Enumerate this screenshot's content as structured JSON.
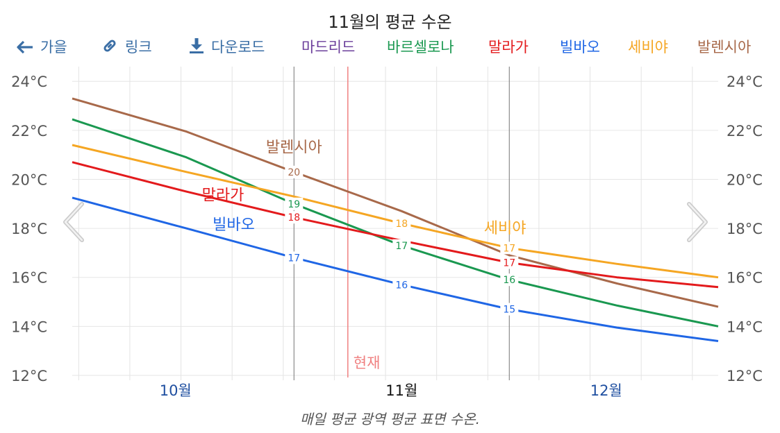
{
  "title": "11월의 평균 수온",
  "caption": "매일 평균 광역 평균 표면 수온.",
  "toolbar": {
    "back": {
      "label": "가을",
      "icon": "arrow-left-icon",
      "color": "#3a6ea5"
    },
    "link": {
      "label": "링크",
      "icon": "link-icon",
      "color": "#3a6ea5"
    },
    "download": {
      "label": "다운로드",
      "icon": "download-icon",
      "color": "#3a6ea5"
    },
    "cities": [
      {
        "label": "마드리드",
        "color": "#6a3d9a"
      },
      {
        "label": "바르셀로나",
        "color": "#1a9850"
      },
      {
        "label": "말라가",
        "color": "#e31a1c"
      },
      {
        "label": "빌바오",
        "color": "#1f66e5"
      },
      {
        "label": "세비야",
        "color": "#f5a623"
      },
      {
        "label": "발렌시아",
        "color": "#a8694a"
      }
    ]
  },
  "nav": {
    "prev_icon": "chevron-left-icon",
    "next_icon": "chevron-right-icon"
  },
  "now_marker": {
    "label": "현재",
    "x": 10.75,
    "color": "#f08080"
  },
  "chart_data": {
    "type": "line",
    "title": "11월의 평균 수온",
    "xlabel": "",
    "ylabel": "",
    "x_unit": "month",
    "xlim": [
      9.47,
      12.47
    ],
    "ylim": [
      11.8,
      24.6
    ],
    "yticks": [
      12,
      14,
      16,
      18,
      20,
      22,
      24
    ],
    "ytick_labels": [
      "12°C",
      "14°C",
      "16°C",
      "18°C",
      "20°C",
      "22°C",
      "24°C"
    ],
    "xtick_labels": [
      {
        "label": "10월",
        "x": 9.95,
        "bold": false
      },
      {
        "label": "11월",
        "x": 11.0,
        "bold": true
      },
      {
        "label": "12월",
        "x": 11.95,
        "bold": false
      }
    ],
    "month_dividers": [
      10.5,
      11.5
    ],
    "grid": true,
    "series": [
      {
        "name": "발렌시아",
        "color": "#a8694a",
        "values": [
          [
            9.47,
            23.3
          ],
          [
            10.0,
            21.95
          ],
          [
            10.5,
            20.3
          ],
          [
            11.0,
            18.7
          ],
          [
            11.5,
            16.9
          ],
          [
            12.0,
            15.75
          ],
          [
            12.47,
            14.8
          ]
        ],
        "point_labels": [
          [
            10.5,
            "20"
          ]
        ],
        "name_label": {
          "x": 10.5,
          "y": 21.1
        }
      },
      {
        "name": "바르셀로나",
        "color": "#1a9850",
        "values": [
          [
            9.47,
            22.45
          ],
          [
            10.0,
            20.9
          ],
          [
            10.5,
            19.0
          ],
          [
            11.0,
            17.3
          ],
          [
            11.5,
            15.9
          ],
          [
            12.0,
            14.85
          ],
          [
            12.47,
            14.0
          ]
        ],
        "point_labels": [
          [
            10.5,
            "19"
          ],
          [
            11.0,
            "17"
          ],
          [
            11.5,
            "16"
          ]
        ]
      },
      {
        "name": "세비야",
        "color": "#f5a623",
        "values": [
          [
            9.47,
            21.4
          ],
          [
            10.0,
            20.3
          ],
          [
            10.5,
            19.3
          ],
          [
            11.0,
            18.2
          ],
          [
            11.5,
            17.2
          ],
          [
            12.0,
            16.55
          ],
          [
            12.47,
            16.0
          ]
        ],
        "point_labels": [
          [
            11.0,
            "18"
          ],
          [
            11.5,
            "17"
          ]
        ],
        "name_label": {
          "x": 11.48,
          "y": 17.8
        }
      },
      {
        "name": "말라가",
        "color": "#e31a1c",
        "values": [
          [
            9.47,
            20.7
          ],
          [
            10.0,
            19.5
          ],
          [
            10.5,
            18.45
          ],
          [
            11.0,
            17.5
          ],
          [
            11.5,
            16.6
          ],
          [
            12.0,
            16.0
          ],
          [
            12.47,
            15.6
          ]
        ],
        "point_labels": [
          [
            10.5,
            "18"
          ],
          [
            11.5,
            "17"
          ]
        ],
        "name_label": {
          "x": 10.17,
          "y": 19.15
        }
      },
      {
        "name": "빌바오",
        "color": "#1f66e5",
        "values": [
          [
            9.47,
            19.25
          ],
          [
            10.0,
            18.0
          ],
          [
            10.5,
            16.8
          ],
          [
            11.0,
            15.7
          ],
          [
            11.5,
            14.7
          ],
          [
            12.0,
            13.95
          ],
          [
            12.47,
            13.4
          ]
        ],
        "point_labels": [
          [
            10.5,
            "17"
          ],
          [
            11.0,
            "16"
          ],
          [
            11.5,
            "15"
          ]
        ],
        "name_label": {
          "x": 10.22,
          "y": 17.95
        }
      }
    ]
  }
}
